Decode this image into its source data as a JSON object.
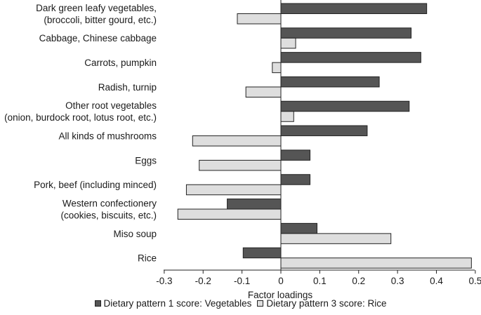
{
  "chart_data": {
    "type": "bar",
    "orientation": "horizontal",
    "categories": [
      [
        "Dark green leafy vegetables,",
        "(broccoli, bitter gourd, etc.)"
      ],
      [
        "Cabbage, Chinese cabbage"
      ],
      [
        "Carrots, pumpkin"
      ],
      [
        "Radish, turnip"
      ],
      [
        "Other root vegetables",
        "(onion, burdock root, lotus root, etc.)"
      ],
      [
        "All kinds of mushrooms"
      ],
      [
        "Eggs"
      ],
      [
        "Pork, beef (including minced)"
      ],
      [
        "Western confectionery",
        "(cookies, biscuits, etc.)"
      ],
      [
        "Miso soup"
      ],
      [
        "Rice"
      ]
    ],
    "series": [
      {
        "name": "Dietary pattern 1 score: Vegetables",
        "color": "#555555",
        "values": [
          0.375,
          0.335,
          0.36,
          0.253,
          0.33,
          0.222,
          0.075,
          0.075,
          -0.138,
          0.093,
          -0.097
        ]
      },
      {
        "name": "Dietary pattern 3 score: Rice",
        "color": "#dedede",
        "values": [
          -0.112,
          0.038,
          -0.022,
          -0.09,
          0.033,
          -0.227,
          -0.21,
          -0.243,
          -0.265,
          0.283,
          0.49
        ]
      }
    ],
    "xlabel": "Factor loadings",
    "xlim": [
      -0.3,
      0.5
    ],
    "xticks": [
      "-0.3",
      "-0.2",
      "-0.1",
      "0",
      "0.1",
      "0.2",
      "0.3",
      "0.4",
      "0.5"
    ],
    "grid": false,
    "legend_position": "bottom"
  }
}
